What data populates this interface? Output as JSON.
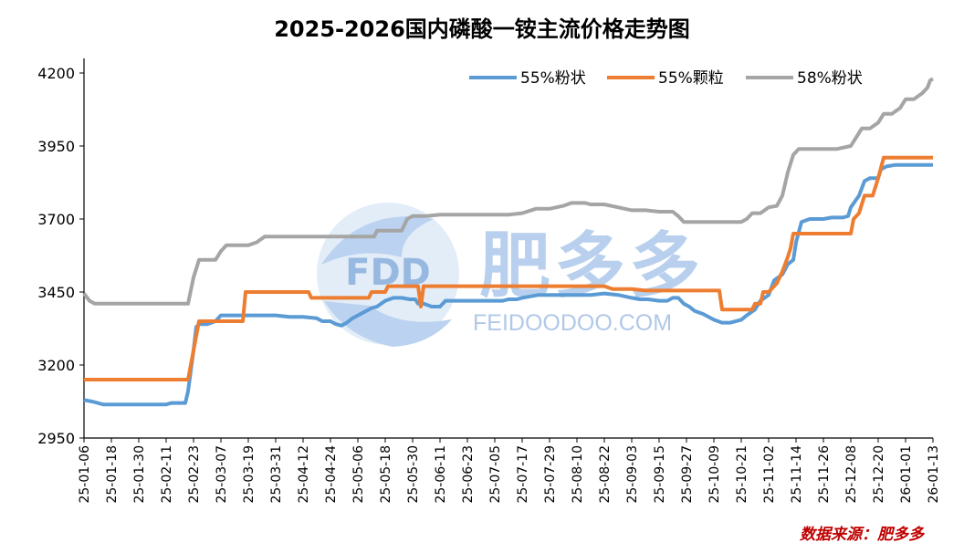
{
  "chart_data": {
    "type": "line",
    "title": "2025-2026国内磷酸一铵主流价格走势图",
    "xlabel": "",
    "ylabel": "",
    "ylim": [
      2950,
      4200
    ],
    "yticks": [
      2950,
      3200,
      3450,
      3700,
      3950,
      4200
    ],
    "grid": false,
    "legend_position": "top-right",
    "x_labels": [
      "25-01-06",
      "25-01-18",
      "25-01-30",
      "25-02-11",
      "25-02-23",
      "25-03-07",
      "25-03-19",
      "25-03-31",
      "25-04-12",
      "25-04-24",
      "25-05-06",
      "25-05-18",
      "25-05-30",
      "25-06-11",
      "25-06-23",
      "25-07-05",
      "25-07-17",
      "25-07-29",
      "25-08-10",
      "25-08-22",
      "25-09-03",
      "25-09-15",
      "25-09-27",
      "25-10-09",
      "25-10-21",
      "25-11-02",
      "25-11-14",
      "25-11-26",
      "25-12-08",
      "25-12-20",
      "26-01-01",
      "26-01-13"
    ],
    "series": [
      {
        "name": "55%粉状",
        "color": "#5b9bd5",
        "points": [
          [
            0,
            3080
          ],
          [
            0.3,
            3075
          ],
          [
            0.7,
            3065
          ],
          [
            1,
            3065
          ],
          [
            1.5,
            3065
          ],
          [
            2,
            3065
          ],
          [
            2.5,
            3065
          ],
          [
            3,
            3065
          ],
          [
            3.2,
            3070
          ],
          [
            3.5,
            3070
          ],
          [
            3.7,
            3070
          ],
          [
            3.8,
            3110
          ],
          [
            3.9,
            3180
          ],
          [
            4,
            3250
          ],
          [
            4.1,
            3330
          ],
          [
            4.2,
            3340
          ],
          [
            4.5,
            3340
          ],
          [
            4.8,
            3350
          ],
          [
            5,
            3370
          ],
          [
            5.5,
            3370
          ],
          [
            6,
            3370
          ],
          [
            6.5,
            3370
          ],
          [
            7,
            3370
          ],
          [
            7.5,
            3365
          ],
          [
            8,
            3365
          ],
          [
            8.5,
            3360
          ],
          [
            8.7,
            3350
          ],
          [
            9,
            3350
          ],
          [
            9.2,
            3340
          ],
          [
            9.4,
            3335
          ],
          [
            9.6,
            3345
          ],
          [
            9.8,
            3360
          ],
          [
            10,
            3370
          ],
          [
            10.3,
            3385
          ],
          [
            10.5,
            3395
          ],
          [
            10.7,
            3400
          ],
          [
            11,
            3420
          ],
          [
            11.3,
            3430
          ],
          [
            11.6,
            3430
          ],
          [
            11.9,
            3425
          ],
          [
            12.1,
            3425
          ],
          [
            12.2,
            3410
          ],
          [
            12.4,
            3410
          ],
          [
            12.7,
            3400
          ],
          [
            13,
            3400
          ],
          [
            13.2,
            3420
          ],
          [
            13.5,
            3420
          ],
          [
            14,
            3420
          ],
          [
            14.5,
            3420
          ],
          [
            15,
            3420
          ],
          [
            15.3,
            3420
          ],
          [
            15.5,
            3425
          ],
          [
            15.8,
            3425
          ],
          [
            16,
            3430
          ],
          [
            16.3,
            3435
          ],
          [
            16.6,
            3440
          ],
          [
            17,
            3440
          ],
          [
            17.5,
            3440
          ],
          [
            18,
            3440
          ],
          [
            18.5,
            3440
          ],
          [
            19,
            3445
          ],
          [
            19.5,
            3440
          ],
          [
            20,
            3430
          ],
          [
            20.3,
            3425
          ],
          [
            20.6,
            3425
          ],
          [
            21,
            3420
          ],
          [
            21.3,
            3420
          ],
          [
            21.5,
            3430
          ],
          [
            21.7,
            3430
          ],
          [
            21.9,
            3410
          ],
          [
            22.1,
            3400
          ],
          [
            22.3,
            3385
          ],
          [
            22.6,
            3375
          ],
          [
            23,
            3355
          ],
          [
            23.3,
            3345
          ],
          [
            23.6,
            3345
          ],
          [
            24,
            3355
          ],
          [
            24.2,
            3370
          ],
          [
            24.5,
            3390
          ],
          [
            24.7,
            3420
          ],
          [
            25,
            3440
          ],
          [
            25.2,
            3490
          ],
          [
            25.5,
            3510
          ],
          [
            25.7,
            3545
          ],
          [
            25.9,
            3560
          ],
          [
            26,
            3620
          ],
          [
            26.2,
            3690
          ],
          [
            26.5,
            3700
          ],
          [
            26.7,
            3700
          ],
          [
            27,
            3700
          ],
          [
            27.3,
            3705
          ],
          [
            27.7,
            3705
          ],
          [
            27.9,
            3710
          ],
          [
            28,
            3740
          ],
          [
            28.3,
            3780
          ],
          [
            28.5,
            3830
          ],
          [
            28.7,
            3840
          ],
          [
            29,
            3840
          ],
          [
            29.1,
            3870
          ],
          [
            29.3,
            3880
          ],
          [
            29.6,
            3885
          ],
          [
            30,
            3885
          ],
          [
            30.5,
            3885
          ],
          [
            31,
            3885
          ]
        ]
      },
      {
        "name": "55%颗粒",
        "color": "#ed7d31",
        "points": [
          [
            0,
            3150
          ],
          [
            3.8,
            3150
          ],
          [
            3.9,
            3200
          ],
          [
            4,
            3250
          ],
          [
            4.1,
            3300
          ],
          [
            4.2,
            3350
          ],
          [
            4.5,
            3350
          ],
          [
            5,
            3350
          ],
          [
            5.5,
            3350
          ],
          [
            5.8,
            3350
          ],
          [
            5.9,
            3450
          ],
          [
            6.5,
            3450
          ],
          [
            7,
            3450
          ],
          [
            7.5,
            3450
          ],
          [
            8,
            3450
          ],
          [
            8.2,
            3450
          ],
          [
            8.3,
            3430
          ],
          [
            8.7,
            3430
          ],
          [
            9,
            3430
          ],
          [
            9.5,
            3430
          ],
          [
            10,
            3430
          ],
          [
            10.4,
            3430
          ],
          [
            10.5,
            3450
          ],
          [
            11,
            3450
          ],
          [
            11.1,
            3470
          ],
          [
            11.8,
            3470
          ],
          [
            12,
            3470
          ],
          [
            12.2,
            3470
          ],
          [
            12.3,
            3400
          ],
          [
            12.4,
            3470
          ],
          [
            13,
            3470
          ],
          [
            14,
            3470
          ],
          [
            15,
            3470
          ],
          [
            16,
            3470
          ],
          [
            17,
            3470
          ],
          [
            18,
            3470
          ],
          [
            19,
            3470
          ],
          [
            19.3,
            3460
          ],
          [
            20,
            3460
          ],
          [
            20.5,
            3455
          ],
          [
            21,
            3455
          ],
          [
            22,
            3455
          ],
          [
            22.5,
            3455
          ],
          [
            23,
            3455
          ],
          [
            23.2,
            3455
          ],
          [
            23.3,
            3390
          ],
          [
            23.5,
            3390
          ],
          [
            24,
            3390
          ],
          [
            24.4,
            3390
          ],
          [
            24.5,
            3410
          ],
          [
            24.7,
            3410
          ],
          [
            24.8,
            3450
          ],
          [
            25,
            3450
          ],
          [
            25.3,
            3480
          ],
          [
            25.5,
            3520
          ],
          [
            25.7,
            3570
          ],
          [
            25.8,
            3600
          ],
          [
            25.9,
            3650
          ],
          [
            26,
            3650
          ],
          [
            26.5,
            3650
          ],
          [
            27,
            3650
          ],
          [
            27.5,
            3650
          ],
          [
            28,
            3650
          ],
          [
            28.1,
            3700
          ],
          [
            28.3,
            3720
          ],
          [
            28.5,
            3780
          ],
          [
            28.8,
            3780
          ],
          [
            29,
            3840
          ],
          [
            29.2,
            3910
          ],
          [
            29.5,
            3910
          ],
          [
            30,
            3910
          ],
          [
            30.5,
            3910
          ],
          [
            31,
            3910
          ]
        ]
      },
      {
        "name": "58%粉状",
        "color": "#a5a5a5",
        "points": [
          [
            0,
            3445
          ],
          [
            0.2,
            3420
          ],
          [
            0.4,
            3410
          ],
          [
            1,
            3410
          ],
          [
            2,
            3410
          ],
          [
            3,
            3410
          ],
          [
            3.7,
            3410
          ],
          [
            3.8,
            3410
          ],
          [
            4,
            3500
          ],
          [
            4.2,
            3560
          ],
          [
            4.5,
            3560
          ],
          [
            4.8,
            3560
          ],
          [
            5,
            3590
          ],
          [
            5.2,
            3610
          ],
          [
            5.5,
            3610
          ],
          [
            6,
            3610
          ],
          [
            6.3,
            3620
          ],
          [
            6.6,
            3640
          ],
          [
            7,
            3640
          ],
          [
            8,
            3640
          ],
          [
            9,
            3640
          ],
          [
            10,
            3640
          ],
          [
            10.6,
            3640
          ],
          [
            10.7,
            3660
          ],
          [
            11,
            3660
          ],
          [
            11.6,
            3660
          ],
          [
            11.8,
            3700
          ],
          [
            12,
            3710
          ],
          [
            12.5,
            3710
          ],
          [
            13,
            3715
          ],
          [
            13.5,
            3715
          ],
          [
            14,
            3715
          ],
          [
            15,
            3715
          ],
          [
            15.5,
            3715
          ],
          [
            16,
            3720
          ],
          [
            16.5,
            3735
          ],
          [
            17,
            3735
          ],
          [
            17.5,
            3745
          ],
          [
            17.8,
            3755
          ],
          [
            18.3,
            3755
          ],
          [
            18.5,
            3750
          ],
          [
            19,
            3750
          ],
          [
            19.5,
            3740
          ],
          [
            20,
            3730
          ],
          [
            20.5,
            3730
          ],
          [
            21,
            3725
          ],
          [
            21.5,
            3725
          ],
          [
            21.7,
            3710
          ],
          [
            21.9,
            3690
          ],
          [
            22.3,
            3690
          ],
          [
            23,
            3690
          ],
          [
            23.5,
            3690
          ],
          [
            24,
            3690
          ],
          [
            24.2,
            3700
          ],
          [
            24.4,
            3720
          ],
          [
            24.7,
            3720
          ],
          [
            25,
            3740
          ],
          [
            25.3,
            3745
          ],
          [
            25.5,
            3780
          ],
          [
            25.7,
            3860
          ],
          [
            25.9,
            3920
          ],
          [
            26.1,
            3940
          ],
          [
            26.5,
            3940
          ],
          [
            27,
            3940
          ],
          [
            27.5,
            3940
          ],
          [
            28,
            3950
          ],
          [
            28.2,
            3980
          ],
          [
            28.4,
            4010
          ],
          [
            28.7,
            4010
          ],
          [
            29,
            4030
          ],
          [
            29.2,
            4060
          ],
          [
            29.5,
            4060
          ],
          [
            29.8,
            4080
          ],
          [
            30,
            4110
          ],
          [
            30.3,
            4110
          ],
          [
            30.6,
            4130
          ],
          [
            30.8,
            4150
          ],
          [
            30.9,
            4175
          ],
          [
            31,
            4180
          ]
        ]
      }
    ]
  },
  "watermark": {
    "logo_text": "FDD",
    "brand_cn": "肥多多",
    "brand_en": "FEIDOODOO.COM"
  },
  "source_note": "数据来源：肥多多"
}
